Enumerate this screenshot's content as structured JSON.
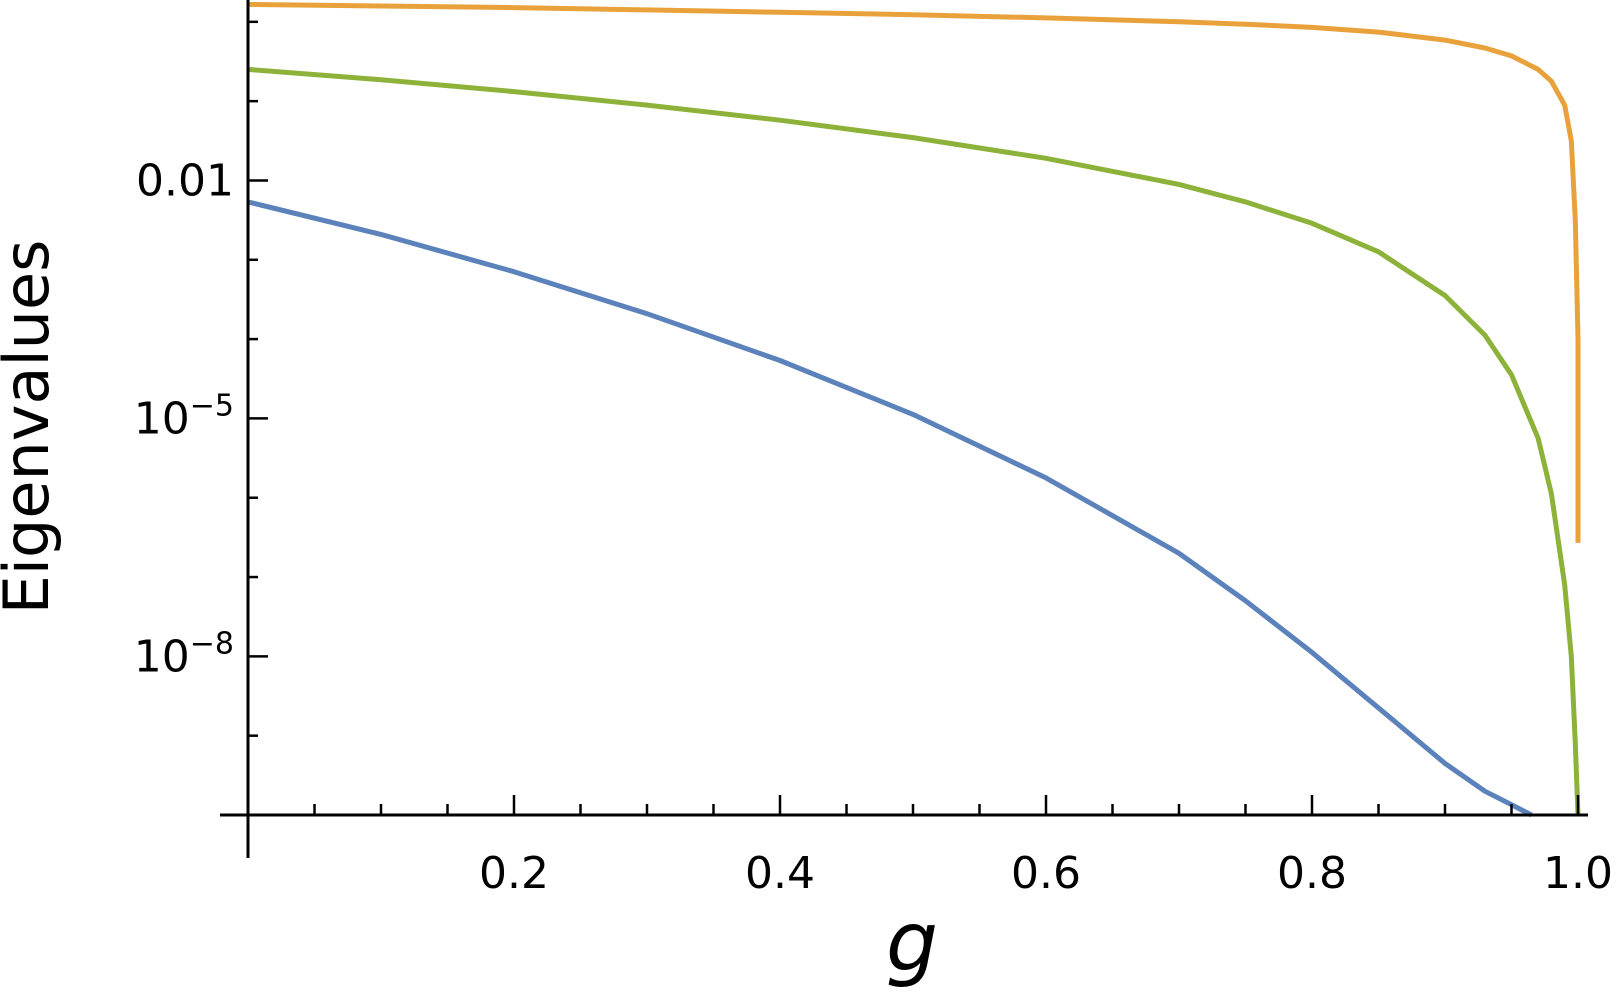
{
  "chart_data": {
    "type": "line",
    "xlabel": "g",
    "ylabel": "Eigenvalues",
    "xlim": [
      0,
      1.0
    ],
    "ylog": true,
    "ylim_log10": [
      -10,
      0.25
    ],
    "grid": false,
    "legend": "none",
    "x_ticks": [
      {
        "value": 0.2,
        "label": "0.2"
      },
      {
        "value": 0.4,
        "label": "0.4"
      },
      {
        "value": 0.6,
        "label": "0.6"
      },
      {
        "value": 0.8,
        "label": "0.8"
      },
      {
        "value": 1.0,
        "label": "1.0"
      }
    ],
    "y_ticks": [
      {
        "log10": -2,
        "label": "0.01",
        "base": "",
        "exp": ""
      },
      {
        "log10": -5,
        "label": "",
        "base": "10",
        "exp": "−5"
      },
      {
        "log10": -8,
        "label": "",
        "base": "10",
        "exp": "−8"
      }
    ],
    "series": [
      {
        "color": "#E9A23B",
        "x": [
          0,
          0.1,
          0.2,
          0.3,
          0.4,
          0.5,
          0.6,
          0.7,
          0.75,
          0.8,
          0.85,
          0.9,
          0.93,
          0.95,
          0.97,
          0.98,
          0.99,
          0.995,
          0.998,
          1.0,
          1.0
        ],
        "y_log10": [
          0.22,
          0.2,
          0.18,
          0.15,
          0.12,
          0.09,
          0.05,
          0.0,
          -0.03,
          -0.07,
          -0.13,
          -0.23,
          -0.33,
          -0.43,
          -0.6,
          -0.75,
          -1.05,
          -1.5,
          -2.5,
          -4.0,
          -6.57
        ]
      },
      {
        "color": "#8DB23A",
        "x": [
          0,
          0.1,
          0.2,
          0.3,
          0.4,
          0.5,
          0.6,
          0.7,
          0.75,
          0.8,
          0.85,
          0.9,
          0.93,
          0.95,
          0.97,
          0.98,
          0.99,
          0.995,
          0.998,
          1.0
        ],
        "y_log10": [
          -0.6,
          -0.73,
          -0.88,
          -1.05,
          -1.24,
          -1.46,
          -1.72,
          -2.05,
          -2.27,
          -2.54,
          -2.9,
          -3.45,
          -3.95,
          -4.45,
          -5.25,
          -5.95,
          -7.1,
          -8.0,
          -9.1,
          -10.0
        ]
      },
      {
        "color": "#5B82BA",
        "x": [
          0,
          0.1,
          0.2,
          0.3,
          0.4,
          0.5,
          0.6,
          0.7,
          0.75,
          0.8,
          0.85,
          0.9,
          0.93,
          0.95,
          0.965
        ],
        "y_log10": [
          -2.27,
          -2.68,
          -3.15,
          -3.68,
          -4.27,
          -4.95,
          -5.75,
          -6.7,
          -7.3,
          -7.95,
          -8.65,
          -9.35,
          -9.7,
          -9.87,
          -10.0
        ]
      }
    ]
  }
}
